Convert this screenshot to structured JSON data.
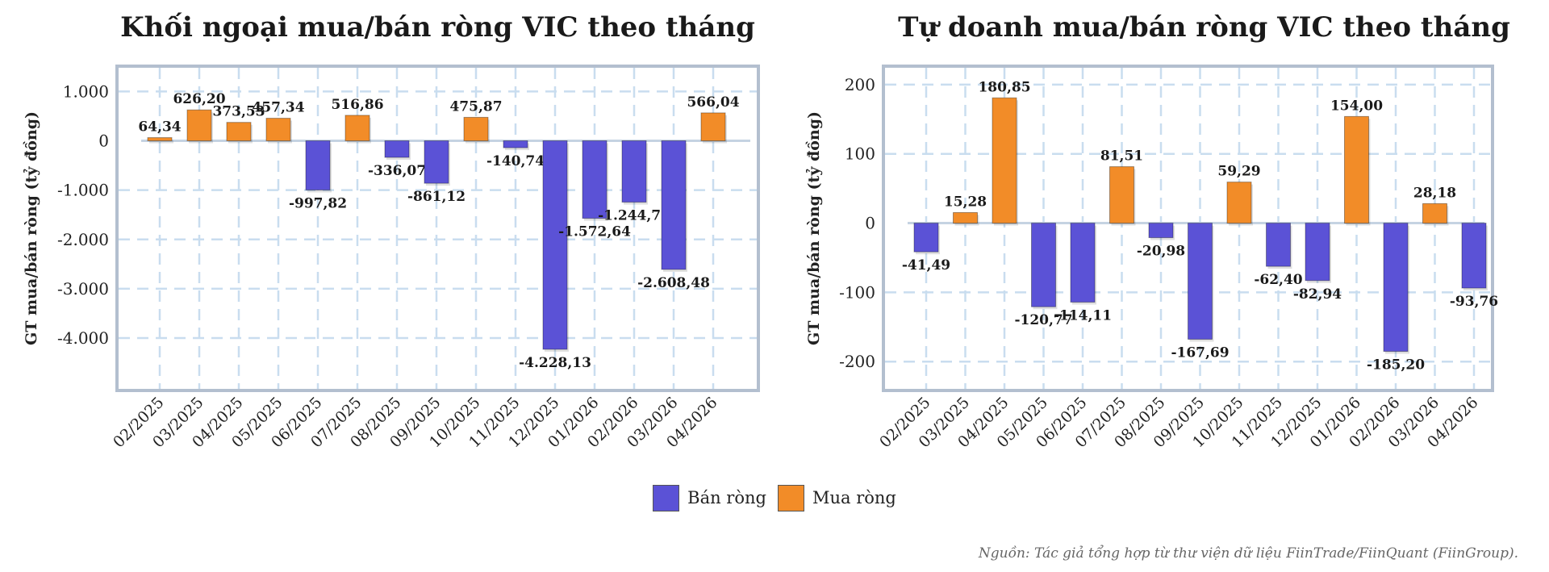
{
  "source_note": "Nguồn: Tác giả tổng hợp từ thư viện dữ liệu FiinTrade/FiinQuant (FiinGroup).",
  "legend": {
    "items": [
      {
        "label": "Bán ròng",
        "color": "#5b52d6"
      },
      {
        "label": "Mua ròng",
        "color": "#f28c28"
      }
    ]
  },
  "colors": {
    "sell": "#5b52d6",
    "buy": "#f28c28",
    "grid": "#c9ddef",
    "frame": "#b3bfcf"
  },
  "chart_data": [
    {
      "type": "bar",
      "title": "Khối ngoại mua/bán ròng VIC theo tháng",
      "ylabel": "GT mua/bán ròng (tỷ đồng)",
      "xlabel": "",
      "ylim": [
        -4900,
        1350
      ],
      "yticks": [
        1000,
        0,
        -1000,
        -2000,
        -3000,
        -4000
      ],
      "ytick_labels": [
        "1.000",
        "0",
        "-1.000",
        "-2.000",
        "-3.000",
        "-4.000"
      ],
      "grid": true,
      "categories": [
        "02/2025",
        "03/2025",
        "04/2025",
        "05/2025",
        "06/2025",
        "07/2025",
        "08/2025",
        "09/2025",
        "10/2025",
        "11/2025",
        "12/2025",
        "01/2026",
        "02/2026",
        "03/2026",
        "04/2026"
      ],
      "values": [
        64.34,
        626.2,
        373.53,
        457.34,
        -997.82,
        516.86,
        -336.07,
        -861.12,
        475.87,
        -140.74,
        -4228.13,
        -1572.64,
        -1244.71,
        -2608.48,
        566.04
      ],
      "value_labels": [
        "64,34",
        "626,20",
        "373,53",
        "457,34",
        "-997,82",
        "516,86",
        "-336,07",
        "-861,12",
        "475,87",
        "-140,74",
        "-4.228,13",
        "-1.572,64",
        "-1.244,71",
        "-2.608,48",
        "566,04"
      ]
    },
    {
      "type": "bar",
      "title": "Tự doanh mua/bán ròng VIC theo tháng",
      "ylabel": "GT mua/bán ròng (tỷ đồng)",
      "xlabel": "",
      "ylim": [
        -230,
        215
      ],
      "yticks": [
        200,
        100,
        0,
        -100,
        -200
      ],
      "ytick_labels": [
        "200",
        "100",
        "0",
        "-100",
        "-200"
      ],
      "grid": true,
      "categories": [
        "02/2025",
        "03/2025",
        "04/2025",
        "05/2025",
        "06/2025",
        "07/2025",
        "08/2025",
        "09/2025",
        "10/2025",
        "11/2025",
        "12/2025",
        "01/2026",
        "02/2026",
        "03/2026",
        "04/2026"
      ],
      "values": [
        -41.49,
        15.28,
        180.85,
        -120.77,
        -114.11,
        81.51,
        -20.98,
        -167.69,
        59.29,
        -62.4,
        -82.94,
        154.0,
        -185.2,
        28.18,
        -93.76
      ],
      "value_labels": [
        "-41,49",
        "15,28",
        "180,85",
        "-120,77",
        "-114,11",
        "81,51",
        "-20,98",
        "-167,69",
        "59,29",
        "-62,40",
        "-82,94",
        "154,00",
        "-185,20",
        "28,18",
        "-93,76"
      ]
    }
  ]
}
